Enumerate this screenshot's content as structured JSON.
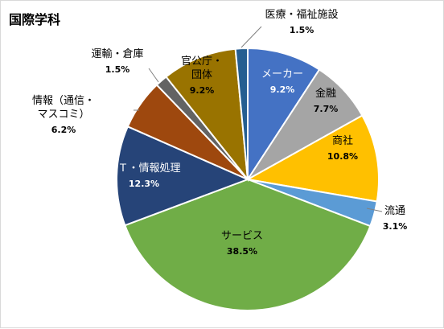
{
  "chart_data": {
    "type": "pie",
    "title": "国際学科",
    "slices": [
      {
        "label": "メーカー",
        "value": 9.2,
        "value_label": "9.2%",
        "color": "#4472c4",
        "label_color": "#ffffff"
      },
      {
        "label": "金融",
        "value": 7.7,
        "value_label": "7.7%",
        "color": "#a5a5a5",
        "label_color": "#000000"
      },
      {
        "label": "商社",
        "value": 10.8,
        "value_label": "10.8%",
        "color": "#ffc000",
        "label_color": "#000000"
      },
      {
        "label": "流通",
        "value": 3.1,
        "value_label": "3.1%",
        "color": "#5b9bd5",
        "label_color": "#000000"
      },
      {
        "label": "サービス",
        "value": 38.5,
        "value_label": "38.5%",
        "color": "#70ad47",
        "label_color": "#000000"
      },
      {
        "label": "ＩＴ・情報処理",
        "value": 12.3,
        "value_label": "12.3%",
        "color": "#264478",
        "label_color": "#ffffff"
      },
      {
        "label": "情報（通信・マスコミ）",
        "value": 6.2,
        "value_label": "6.2%",
        "color": "#9e480e",
        "label_color": "#000000"
      },
      {
        "label": "運輸・倉庫",
        "value": 1.5,
        "value_label": "1.5%",
        "color": "#636363",
        "label_color": "#000000"
      },
      {
        "label": "官公庁・団体",
        "value": 9.2,
        "value_label": "9.2%",
        "color": "#997300",
        "label_color": "#000000"
      },
      {
        "label": "医療・福祉施設",
        "value": 1.5,
        "value_label": "1.5%",
        "color": "#255e91",
        "label_color": "#000000"
      }
    ]
  }
}
